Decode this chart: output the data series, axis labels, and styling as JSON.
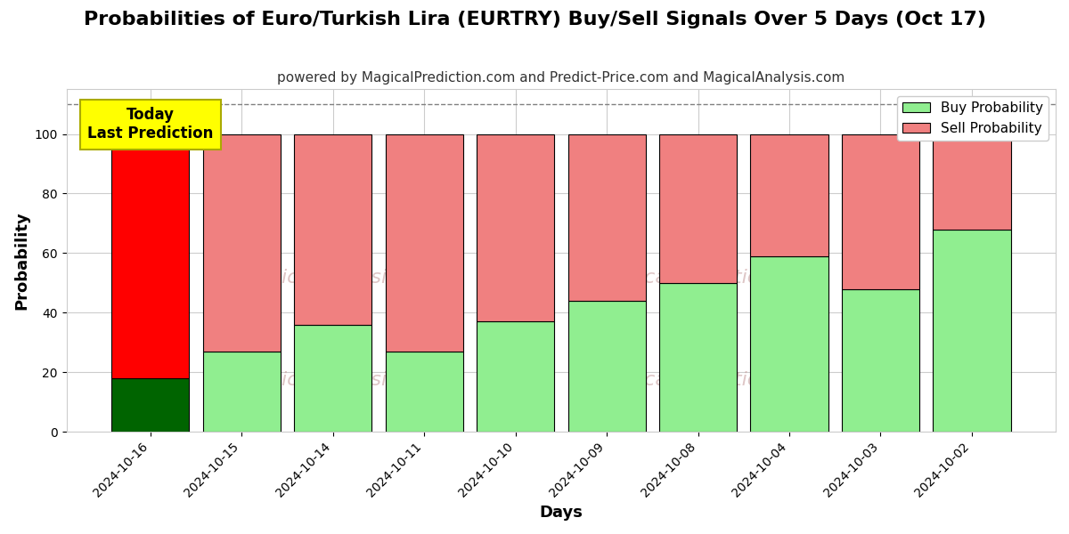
{
  "title": "Probabilities of Euro/Turkish Lira (EURTRY) Buy/Sell Signals Over 5 Days (Oct 17)",
  "subtitle": "powered by MagicalPrediction.com and Predict-Price.com and MagicalAnalysis.com",
  "xlabel": "Days",
  "ylabel": "Probability",
  "categories": [
    "2024-10-16",
    "2024-10-15",
    "2024-10-14",
    "2024-10-11",
    "2024-10-10",
    "2024-10-09",
    "2024-10-08",
    "2024-10-04",
    "2024-10-03",
    "2024-10-02"
  ],
  "buy_values": [
    18,
    27,
    36,
    27,
    37,
    44,
    50,
    59,
    48,
    68
  ],
  "sell_values": [
    82,
    73,
    64,
    73,
    63,
    56,
    50,
    41,
    52,
    32
  ],
  "today_bar_index": 0,
  "today_buy_color": "#006400",
  "today_sell_color": "#ff0000",
  "other_buy_color": "#90EE90",
  "other_sell_color": "#F08080",
  "bar_edge_color": "#000000",
  "today_label_bg": "#ffff00",
  "today_label_text": "Today\nLast Prediction",
  "dashed_line_y": 110,
  "ylim": [
    0,
    115
  ],
  "yticks": [
    0,
    20,
    40,
    60,
    80,
    100
  ],
  "legend_buy": "Buy Probability",
  "legend_sell": "Sell Probability",
  "watermark_color": "#c8a0a0",
  "title_fontsize": 16,
  "subtitle_fontsize": 11,
  "axis_label_fontsize": 13,
  "tick_label_fontsize": 10,
  "legend_fontsize": 11,
  "bar_width": 0.85
}
